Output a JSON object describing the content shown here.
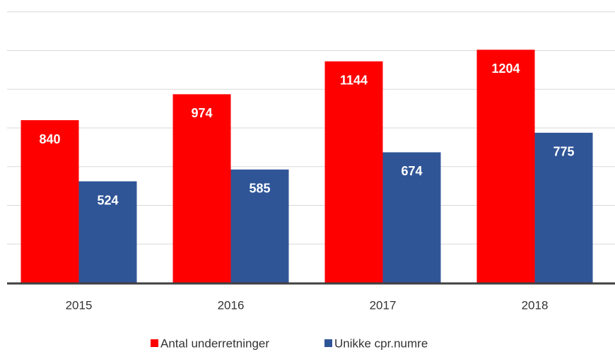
{
  "chart_data": {
    "type": "bar",
    "categories": [
      "2015",
      "2016",
      "2017",
      "2018"
    ],
    "series": [
      {
        "name": "Antal underretninger",
        "color": "#ff0000",
        "values": [
          840,
          974,
          1144,
          1204
        ]
      },
      {
        "name": "Unikke cpr.numre",
        "color": "#2f5597",
        "values": [
          524,
          585,
          674,
          775
        ]
      }
    ],
    "ylim": [
      0,
      1400
    ],
    "yticks": [
      0,
      200,
      400,
      600,
      800,
      1000,
      1200,
      1400
    ],
    "grid": true,
    "legend": "bottom"
  }
}
